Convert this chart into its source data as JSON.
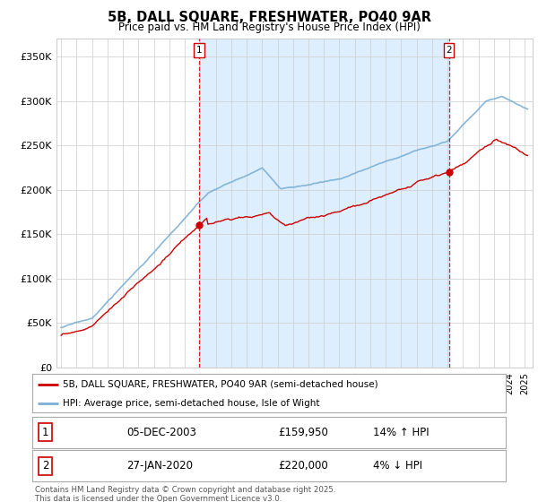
{
  "title": "5B, DALL SQUARE, FRESHWATER, PO40 9AR",
  "subtitle": "Price paid vs. HM Land Registry's House Price Index (HPI)",
  "ylabel_ticks": [
    "£0",
    "£50K",
    "£100K",
    "£150K",
    "£200K",
    "£250K",
    "£300K",
    "£350K"
  ],
  "ytick_values": [
    0,
    50000,
    100000,
    150000,
    200000,
    250000,
    300000,
    350000
  ],
  "ylim": [
    0,
    370000
  ],
  "xlim_start": 1994.7,
  "xlim_end": 2025.5,
  "hpi_color": "#7bafd4",
  "hpi_fill_color": "#ddeeff",
  "price_color": "#cc0000",
  "marker1_x": 2003.92,
  "marker2_x": 2020.08,
  "marker1_price": 159950,
  "marker2_price": 220000,
  "legend_label1": "5B, DALL SQUARE, FRESHWATER, PO40 9AR (semi-detached house)",
  "legend_label2": "HPI: Average price, semi-detached house, Isle of Wight",
  "annotation1_label": "1",
  "annotation1_date": "05-DEC-2003",
  "annotation1_price": "£159,950",
  "annotation1_hpi": "14% ↑ HPI",
  "annotation2_label": "2",
  "annotation2_date": "27-JAN-2020",
  "annotation2_price": "£220,000",
  "annotation2_hpi": "4% ↓ HPI",
  "footer": "Contains HM Land Registry data © Crown copyright and database right 2025.\nThis data is licensed under the Open Government Licence v3.0.",
  "background_color": "#ffffff",
  "plot_bg_color": "#ffffff",
  "grid_color": "#cccccc"
}
